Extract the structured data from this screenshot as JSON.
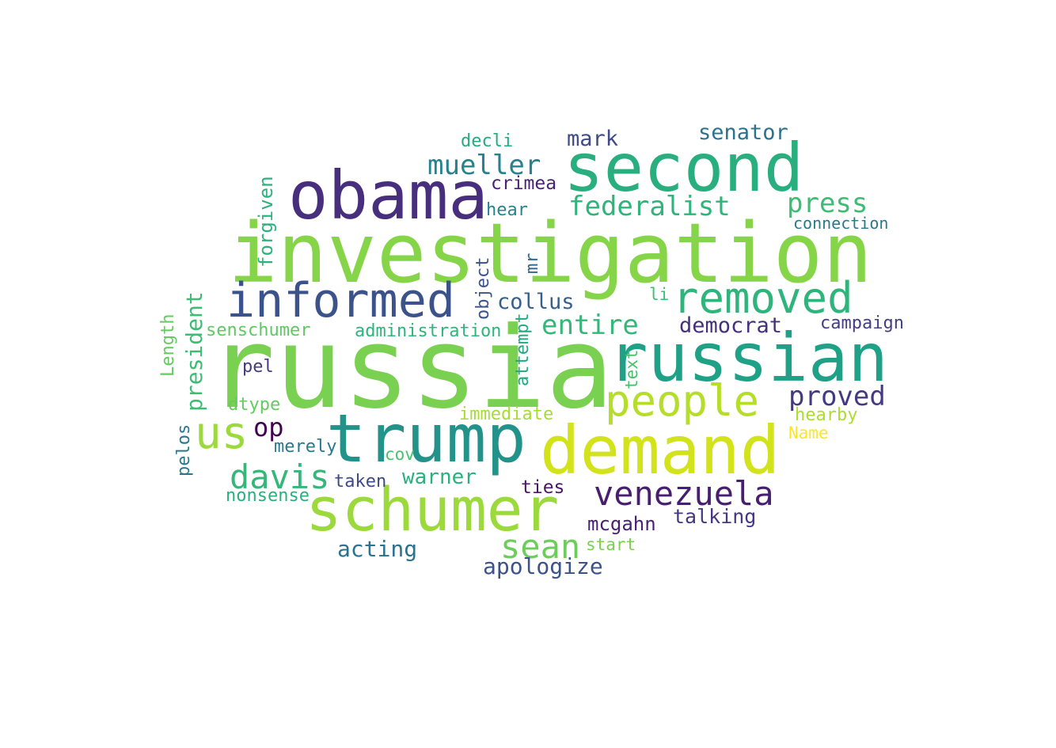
{
  "words": [
    {
      "text": "russia",
      "color": "#7ad151"
    },
    {
      "text": "investigation",
      "color": "#86d549"
    },
    {
      "text": "russian",
      "color": "#1fa187"
    },
    {
      "text": "trump",
      "color": "#22928b"
    },
    {
      "text": "demand",
      "color": "#d2e21b"
    },
    {
      "text": "second",
      "color": "#29af7f"
    },
    {
      "text": "obama",
      "color": "#472f7d"
    },
    {
      "text": "schumer",
      "color": "#9bd93c"
    },
    {
      "text": "informed",
      "color": "#3b528b"
    },
    {
      "text": "removed",
      "color": "#2fb47c"
    },
    {
      "text": "people",
      "color": "#b5de2b"
    },
    {
      "text": "us",
      "color": "#9bd93c"
    },
    {
      "text": "venezuela",
      "color": "#481f70"
    },
    {
      "text": "davis",
      "color": "#35b779"
    },
    {
      "text": "sean",
      "color": "#6ccd5a"
    },
    {
      "text": "mueller",
      "color": "#26828e"
    },
    {
      "text": "federalist",
      "color": "#2fb47c"
    },
    {
      "text": "press",
      "color": "#3dbc74"
    },
    {
      "text": "proved",
      "color": "#443983"
    },
    {
      "text": "entire",
      "color": "#35b779"
    },
    {
      "text": "apologize",
      "color": "#3b528b"
    },
    {
      "text": "senator",
      "color": "#2c728e"
    },
    {
      "text": "mark",
      "color": "#3e4a89"
    },
    {
      "text": "collus",
      "color": "#355f8d"
    },
    {
      "text": "democrat",
      "color": "#46307e"
    },
    {
      "text": "acting",
      "color": "#2c728e"
    },
    {
      "text": "warner",
      "color": "#2ab07f"
    },
    {
      "text": "talking",
      "color": "#453781"
    },
    {
      "text": "mcgahn",
      "color": "#482173"
    },
    {
      "text": "op",
      "color": "#440154"
    },
    {
      "text": "president",
      "color": "#3dbc74"
    },
    {
      "text": "campaign",
      "color": "#433e85"
    },
    {
      "text": "crimea",
      "color": "#482374"
    },
    {
      "text": "senschumer",
      "color": "#5ec962"
    },
    {
      "text": "administration",
      "color": "#2fb47c"
    },
    {
      "text": "connection",
      "color": "#2a788e"
    },
    {
      "text": "hearby",
      "color": "#addc30"
    },
    {
      "text": "immediate",
      "color": "#a8db34"
    },
    {
      "text": "taken",
      "color": "#3e4989"
    },
    {
      "text": "ties",
      "color": "#481769"
    },
    {
      "text": "forgiven",
      "color": "#2db27d"
    },
    {
      "text": "decli",
      "color": "#25ab82"
    },
    {
      "text": "hear",
      "color": "#25848e"
    },
    {
      "text": "object",
      "color": "#3b528b"
    },
    {
      "text": "mr",
      "color": "#31688e"
    },
    {
      "text": "attempt",
      "color": "#22a884"
    },
    {
      "text": "pel",
      "color": "#443a83"
    },
    {
      "text": "merely",
      "color": "#2a788e"
    },
    {
      "text": "dtype",
      "color": "#63cb5f"
    },
    {
      "text": "nonsense",
      "color": "#2ab07f"
    },
    {
      "text": "pelos",
      "color": "#2a788e"
    },
    {
      "text": "Length",
      "color": "#63cb5f"
    },
    {
      "text": "cov",
      "color": "#4ac16d"
    },
    {
      "text": "li",
      "color": "#3dbc74"
    },
    {
      "text": "text",
      "color": "#4ac16d"
    },
    {
      "text": "start",
      "color": "#7ad151"
    },
    {
      "text": "Name",
      "color": "#fde725"
    }
  ]
}
